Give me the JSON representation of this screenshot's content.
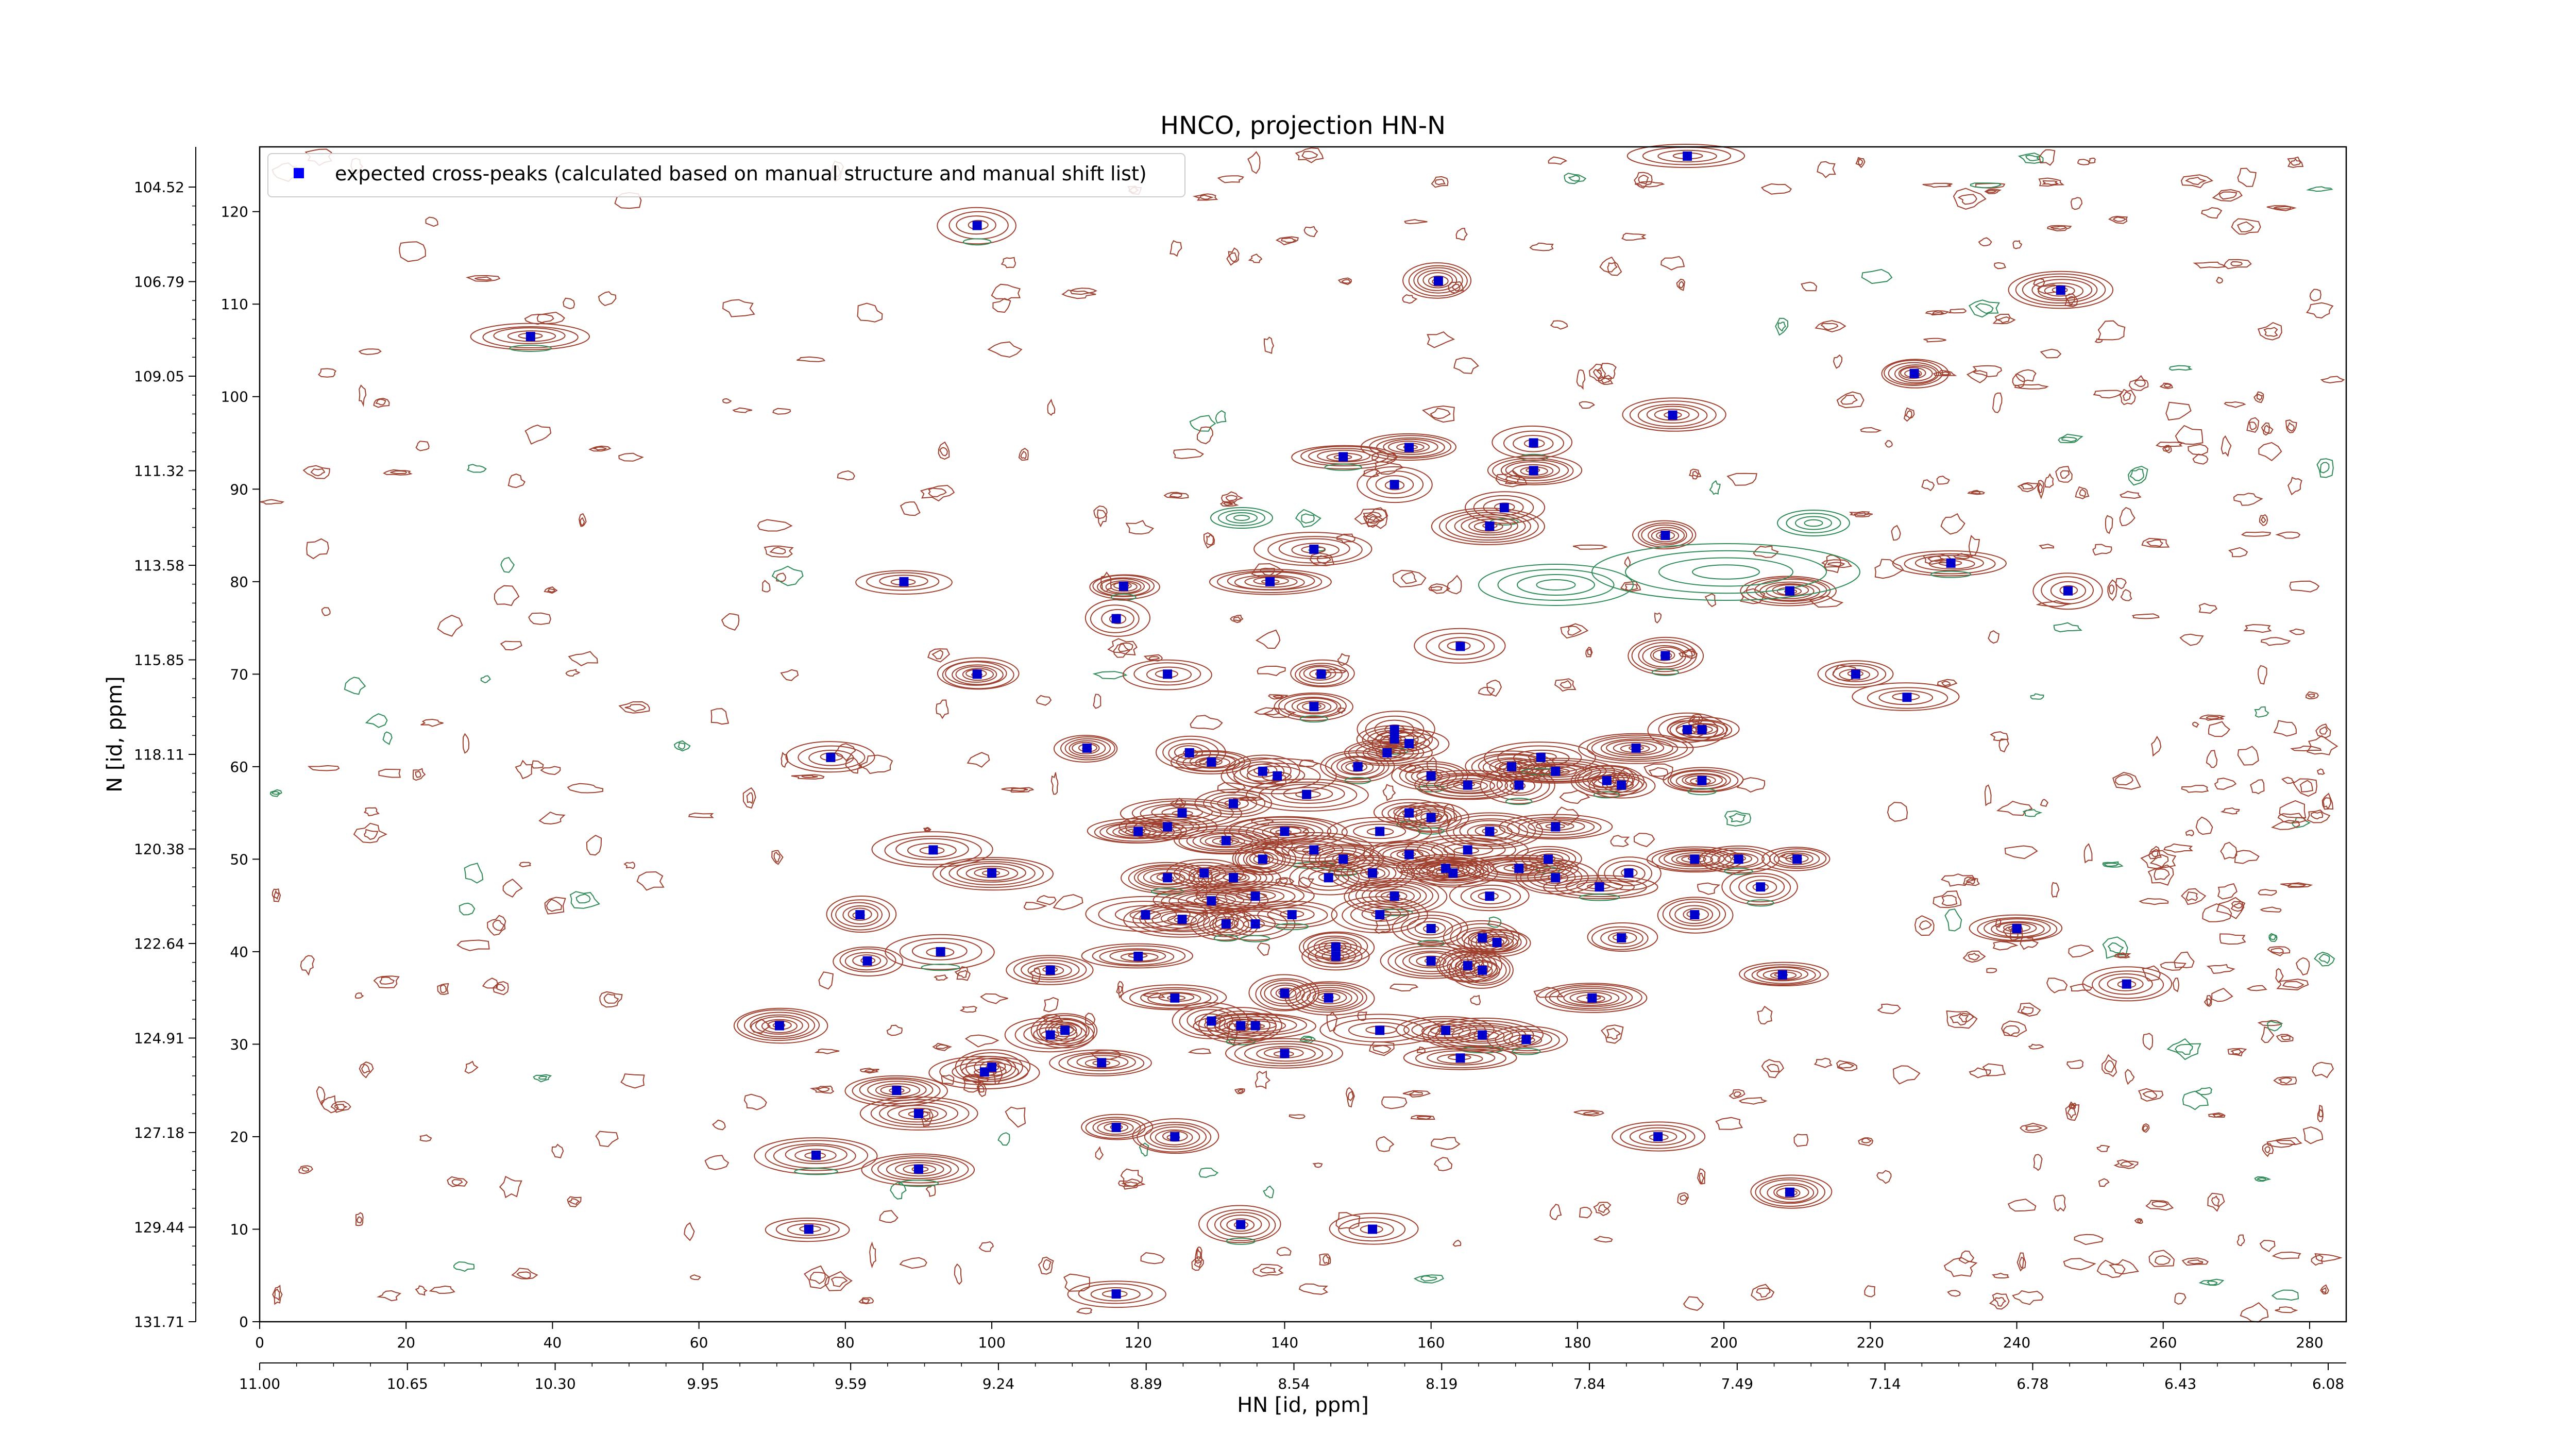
{
  "chart_data": {
    "type": "scatter",
    "title": "HNCO, projection HN-N",
    "xlabel": "HN [id, ppm]",
    "ylabel": "N [id, ppm]",
    "xlim": [
      0,
      285
    ],
    "ylim": [
      0,
      127
    ],
    "x_index_ticks": [
      "0",
      "20",
      "40",
      "60",
      "80",
      "100",
      "120",
      "140",
      "160",
      "180",
      "200",
      "220",
      "240",
      "260",
      "280"
    ],
    "x_ppm_ticks": [
      "11.00",
      "10.65",
      "10.30",
      "9.95",
      "9.59",
      "9.24",
      "8.89",
      "8.54",
      "8.19",
      "7.84",
      "7.49",
      "7.14",
      "6.78",
      "6.43",
      "6.08"
    ],
    "y_index_ticks": [
      "0",
      "10",
      "20",
      "30",
      "40",
      "50",
      "60",
      "70",
      "80",
      "90",
      "100",
      "110",
      "120"
    ],
    "y_ppm_ticks": [
      "131.71",
      "129.44",
      "127.18",
      "124.91",
      "122.64",
      "120.38",
      "118.11",
      "115.85",
      "113.58",
      "111.32",
      "109.05",
      "106.79",
      "104.52"
    ],
    "legend": {
      "placement": "top-left",
      "entries": [
        {
          "label": "expected cross-peaks (calculated based on manual structure and manual shift list)",
          "color": "#0000ff"
        }
      ]
    },
    "colors": {
      "peak_marker": "#0000cc",
      "positive_contour": "#a0402e",
      "negative_contour": "#2e8b57"
    },
    "series": [
      {
        "name": "expected cross-peaks (calculated based on manual structure and manual shift list)",
        "points": [
          [
            37,
            106.5
          ],
          [
            98,
            118.5
          ],
          [
            161,
            112.5
          ],
          [
            195,
            126
          ],
          [
            246,
            111.5
          ],
          [
            226,
            102.5
          ],
          [
            193,
            98
          ],
          [
            148,
            93.5
          ],
          [
            157,
            94.5
          ],
          [
            174,
            95
          ],
          [
            174,
            92
          ],
          [
            155,
            90.5
          ],
          [
            170,
            88
          ],
          [
            168,
            86
          ],
          [
            192,
            85
          ],
          [
            144,
            83.5
          ],
          [
            231,
            82
          ],
          [
            88,
            80
          ],
          [
            118,
            79.5
          ],
          [
            138,
            80
          ],
          [
            247,
            79
          ],
          [
            209,
            79
          ],
          [
            117,
            76
          ],
          [
            164,
            73
          ],
          [
            192,
            72
          ],
          [
            98,
            70
          ],
          [
            124,
            70
          ],
          [
            145,
            70
          ],
          [
            218,
            70
          ],
          [
            144,
            66.5
          ],
          [
            225,
            67.5
          ],
          [
            155,
            64
          ],
          [
            155,
            63
          ],
          [
            195,
            64
          ],
          [
            197,
            64
          ],
          [
            188,
            62
          ],
          [
            78,
            61
          ],
          [
            113,
            62
          ],
          [
            157,
            62.5
          ],
          [
            154,
            61.5
          ],
          [
            137,
            59.5
          ],
          [
            139,
            59
          ],
          [
            150,
            60
          ],
          [
            130,
            60.5
          ],
          [
            127,
            61.5
          ],
          [
            171,
            60
          ],
          [
            177,
            59.5
          ],
          [
            175,
            61
          ],
          [
            160,
            59
          ],
          [
            165,
            58
          ],
          [
            172,
            58
          ],
          [
            184,
            58.5
          ],
          [
            186,
            58
          ],
          [
            197,
            58.5
          ],
          [
            143,
            57
          ],
          [
            133,
            56
          ],
          [
            126,
            55
          ],
          [
            157,
            55
          ],
          [
            160,
            54.5
          ],
          [
            124,
            53.5
          ],
          [
            120,
            53
          ],
          [
            140,
            53
          ],
          [
            153,
            53
          ],
          [
            168,
            53
          ],
          [
            177,
            53.5
          ],
          [
            132,
            52
          ],
          [
            144,
            51
          ],
          [
            165,
            51
          ],
          [
            137,
            50
          ],
          [
            148,
            50
          ],
          [
            176,
            50
          ],
          [
            162,
            49
          ],
          [
            157,
            50.5
          ],
          [
            172,
            49
          ],
          [
            187,
            48.5
          ],
          [
            92,
            51
          ],
          [
            100,
            48.5
          ],
          [
            124,
            48
          ],
          [
            129,
            48.5
          ],
          [
            133,
            48
          ],
          [
            152,
            48.5
          ],
          [
            146,
            48
          ],
          [
            163,
            48.5
          ],
          [
            177,
            48
          ],
          [
            196,
            50
          ],
          [
            202,
            50
          ],
          [
            210,
            50
          ],
          [
            136,
            46
          ],
          [
            130,
            45.5
          ],
          [
            155,
            46
          ],
          [
            168,
            46
          ],
          [
            183,
            47
          ],
          [
            196,
            44
          ],
          [
            205,
            47
          ],
          [
            82,
            44
          ],
          [
            121,
            44
          ],
          [
            126,
            43.5
          ],
          [
            132,
            43
          ],
          [
            136,
            43
          ],
          [
            141,
            44
          ],
          [
            153,
            44
          ],
          [
            160,
            42.5
          ],
          [
            167,
            41.5
          ],
          [
            169,
            41
          ],
          [
            186,
            41.5
          ],
          [
            240,
            42.5
          ],
          [
            83,
            39
          ],
          [
            93,
            40
          ],
          [
            147,
            40.5
          ],
          [
            147,
            39.5
          ],
          [
            160,
            39
          ],
          [
            165,
            38.5
          ],
          [
            167,
            38
          ],
          [
            108,
            38
          ],
          [
            120,
            39.5
          ],
          [
            208,
            37.5
          ],
          [
            255,
            36.5
          ],
          [
            125,
            35
          ],
          [
            140,
            35.5
          ],
          [
            146,
            35
          ],
          [
            182,
            35
          ],
          [
            71,
            32
          ],
          [
            130,
            32.5
          ],
          [
            134,
            32
          ],
          [
            136,
            32
          ],
          [
            153,
            31.5
          ],
          [
            162,
            31.5
          ],
          [
            167,
            31
          ],
          [
            108,
            31
          ],
          [
            110,
            31.5
          ],
          [
            173,
            30.5
          ],
          [
            140,
            29
          ],
          [
            100,
            27.5
          ],
          [
            99,
            27
          ],
          [
            115,
            28
          ],
          [
            164,
            28.5
          ],
          [
            87,
            25
          ],
          [
            90,
            22.5
          ],
          [
            117,
            21
          ],
          [
            125,
            20
          ],
          [
            191,
            20
          ],
          [
            76,
            18
          ],
          [
            90,
            16.5
          ],
          [
            209,
            14
          ],
          [
            75,
            10
          ],
          [
            134,
            10.5
          ],
          [
            152,
            10
          ],
          [
            117,
            3
          ]
        ]
      }
    ]
  }
}
